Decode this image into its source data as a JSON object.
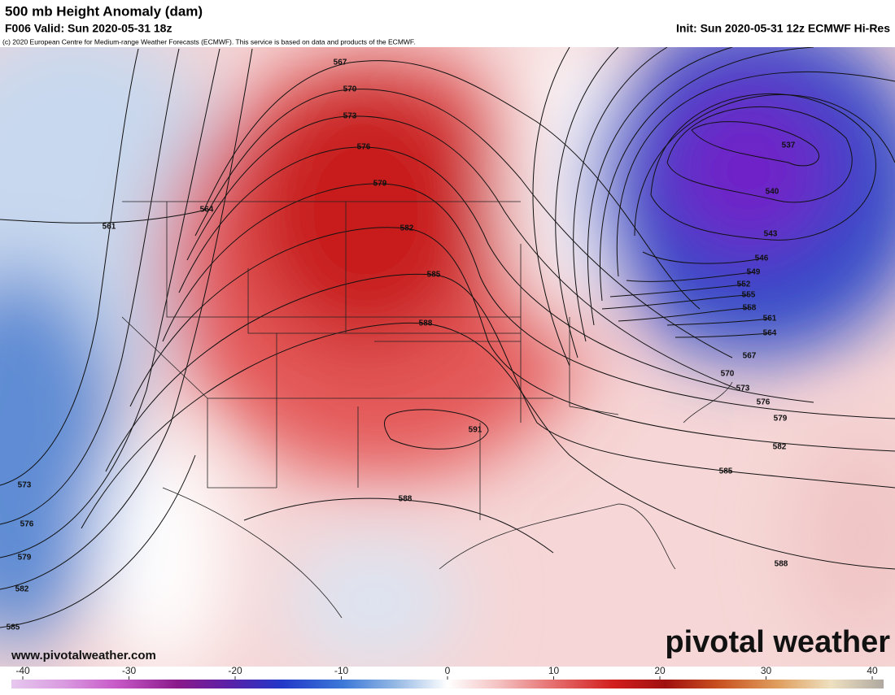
{
  "header": {
    "title": "500 mb Height Anomaly (dam)",
    "valid": "F006 Valid: Sun 2020-05-31 18z",
    "init": "Init: Sun 2020-05-31 12z ECMWF Hi-Res",
    "copyright": "(c) 2020 European Centre for Medium-range Weather Forecasts (ECMWF). This service is based on data and products of the ECMWF."
  },
  "contour_labels": [
    "567",
    "570",
    "573",
    "576",
    "579",
    "582",
    "585",
    "588",
    "591",
    "588",
    "564",
    "561",
    "573",
    "576",
    "579",
    "582",
    "585",
    "537",
    "540",
    "543",
    "546",
    "549",
    "552",
    "555",
    "558",
    "561",
    "564",
    "567",
    "570",
    "573",
    "576",
    "579",
    "582",
    "585",
    "588"
  ],
  "footer": {
    "website": "www.pivotalweather.com",
    "brand": "pivotal weather"
  },
  "colorbar": {
    "ticks": [
      -40,
      -30,
      -20,
      -10,
      0,
      10,
      20,
      30,
      40
    ]
  }
}
